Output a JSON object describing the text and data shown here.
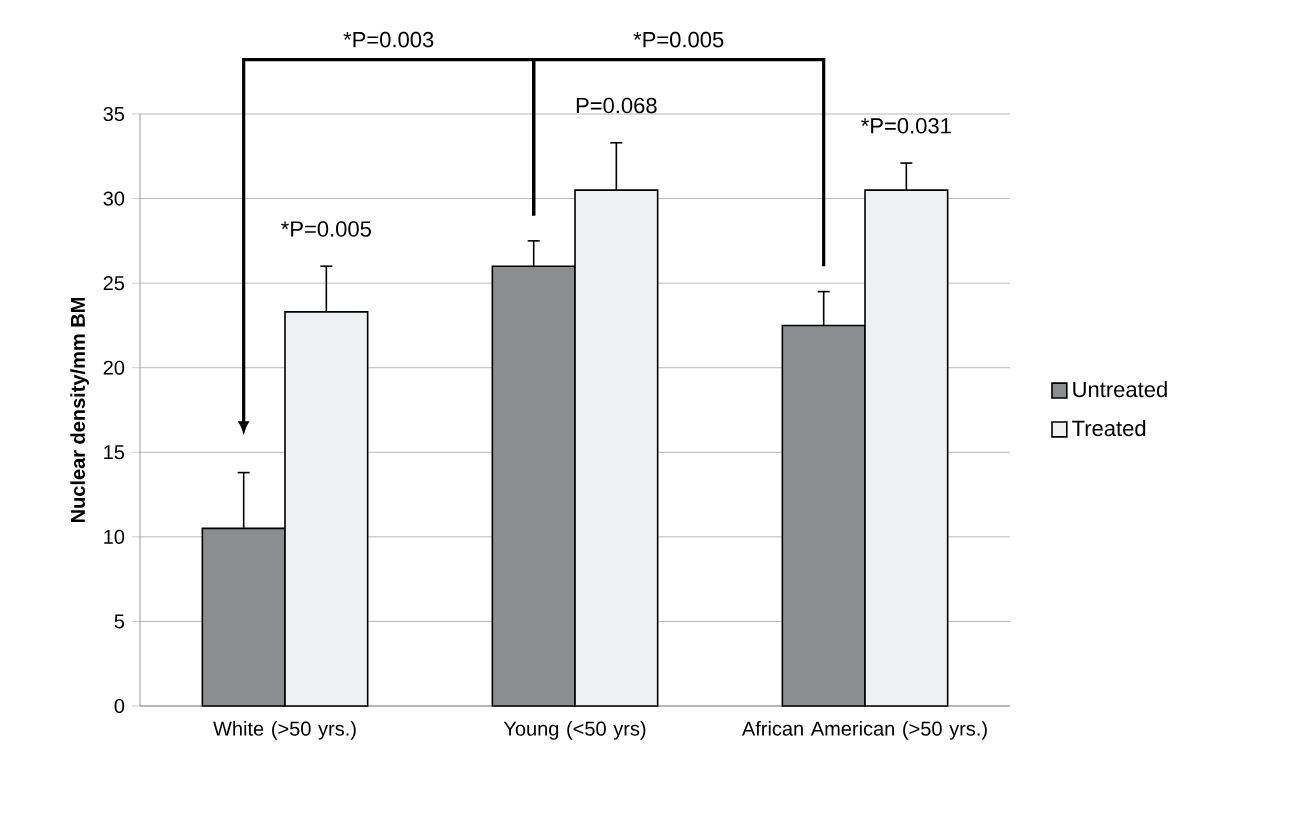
{
  "chart_data": {
    "type": "bar",
    "ylabel": "Nuclear density/mm BM",
    "categories": [
      "White (>50 yrs.)",
      "Young (<50 yrs)",
      "African American (>50 yrs.)"
    ],
    "series": [
      {
        "name": "Untreated",
        "color": "#8c8d91",
        "values": [
          10.5,
          26,
          22.5
        ],
        "errors": [
          3.3,
          1.5,
          2
        ]
      },
      {
        "name": "Treated",
        "color": "#eff0f2",
        "values": [
          23.3,
          30.5,
          30.5
        ],
        "errors": [
          2.7,
          2.8,
          1.6
        ]
      }
    ],
    "ylim": [
      0,
      35
    ],
    "yticks": [
      0,
      5,
      10,
      15,
      20,
      25,
      30,
      35
    ],
    "grid": "y",
    "legend": "right",
    "annotations": [
      "*P=0.003",
      "*P=0.005",
      "*P=0.005",
      "P=0.068",
      "*P=0.031"
    ]
  }
}
